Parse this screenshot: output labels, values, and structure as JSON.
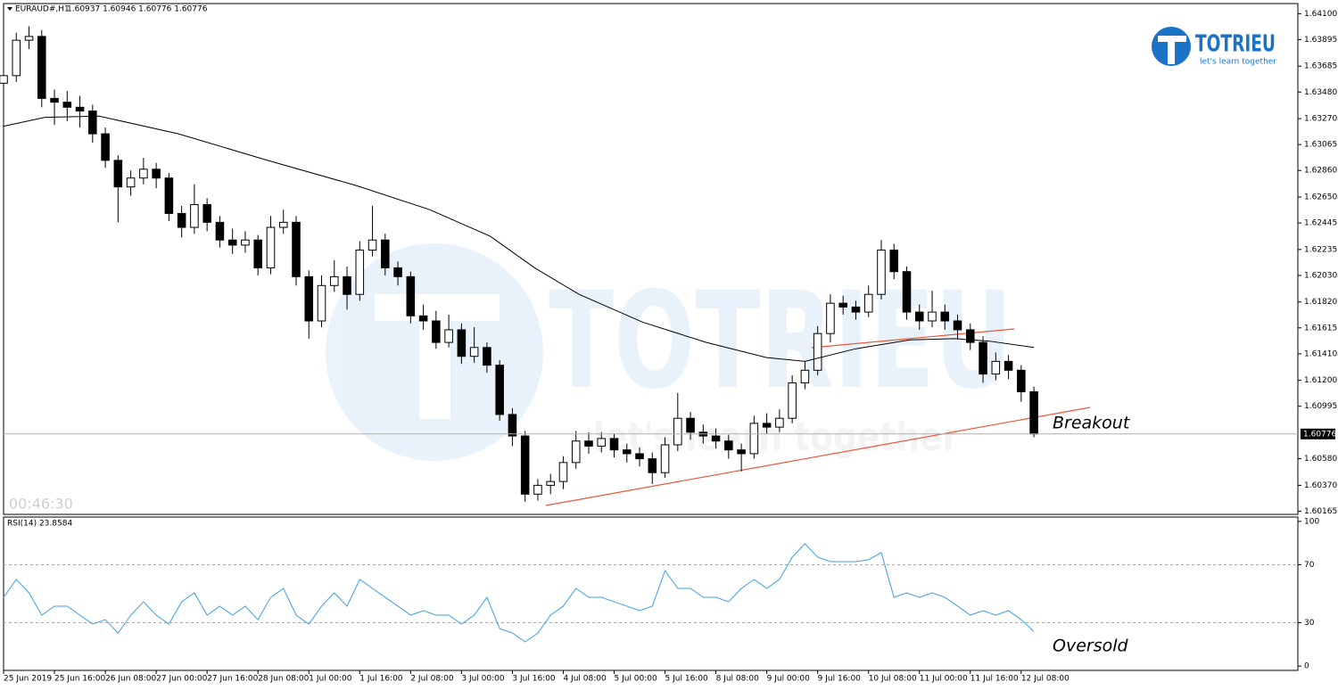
{
  "chart_data": [
    {
      "type": "candlestick",
      "symbol": "EURAUD#,H1",
      "quote": "1.60937 1.60946 1.60776 1.60776",
      "timer": "00:46:30",
      "annotations": [
        "Breakout"
      ],
      "watermark": {
        "brand": "TOTRIEU",
        "slogan": "let's learn together"
      },
      "up_color": "#ffffff",
      "down_color": "#000000",
      "xlim": [
        0,
        407
      ],
      "ylim": [
        1.6014,
        1.6418
      ],
      "yticks": [
        {
          "value": 1.641,
          "label": "1.64100"
        },
        1.63895,
        1.63685,
        {
          "value": 1.6348,
          "label": "1.63480"
        },
        {
          "value": 1.6327,
          "label": "1.63270"
        },
        1.63065,
        {
          "value": 1.6286,
          "label": "1.62860"
        },
        {
          "value": 1.6265,
          "label": "1.62650"
        },
        1.62445,
        1.62235,
        {
          "value": 1.6203,
          "label": "1.62030"
        },
        {
          "value": 1.6182,
          "label": "1.61820"
        },
        1.61615,
        {
          "value": 1.6141,
          "label": "1.61410"
        },
        {
          "value": 1.612,
          "label": "1.61200"
        },
        1.60995,
        {
          "value": 1.6058,
          "label": "1.60580"
        },
        {
          "value": 1.6037,
          "label": "1.60370"
        },
        1.60165
      ],
      "current_price": 1.60776,
      "x": [
        0,
        4,
        8,
        12,
        16,
        20,
        24,
        28,
        32,
        36,
        40,
        44,
        48,
        52,
        56,
        60,
        64,
        68,
        72,
        76,
        80,
        84,
        88,
        92,
        96,
        100,
        104,
        108,
        112,
        116,
        120,
        124,
        128,
        132,
        136,
        140,
        144,
        148,
        152,
        156,
        160,
        164,
        168,
        172,
        176,
        180,
        184,
        188,
        192,
        196,
        200,
        204,
        208,
        212,
        216,
        220,
        224,
        228,
        232,
        236,
        240,
        244,
        248,
        252,
        256,
        260,
        264,
        268,
        272,
        276,
        280,
        284,
        288,
        292,
        296,
        300,
        304,
        308,
        312,
        316,
        320,
        324
      ],
      "open": [
        1.6355,
        1.6361,
        1.6389,
        1.6392,
        1.6343,
        1.634,
        1.6336,
        1.6333,
        1.6315,
        1.6294,
        1.6273,
        1.628,
        1.6287,
        1.628,
        1.6252,
        1.6241,
        1.6259,
        1.6245,
        1.6231,
        1.6227,
        1.6231,
        1.6209,
        1.6241,
        1.6245,
        1.6202,
        1.6167,
        1.6195,
        1.6202,
        1.6188,
        1.6223,
        1.6231,
        1.6209,
        1.6202,
        1.6171,
        1.6167,
        1.615,
        1.616,
        1.6139,
        1.6146,
        1.6132,
        1.6093,
        1.6076,
        1.603,
        1.6037,
        1.604,
        1.6055,
        1.6072,
        1.6068,
        1.6074,
        1.6065,
        1.6062,
        1.6058,
        1.6047,
        1.6069,
        1.609,
        1.6079,
        1.6076,
        1.6072,
        1.6065,
        1.6062,
        1.6086,
        1.6083,
        1.609,
        1.6118,
        1.6128,
        1.6157,
        1.6181,
        1.6178,
        1.6174,
        1.6188,
        1.6223,
        1.6206,
        1.6174,
        1.6167,
        1.6174,
        1.6167,
        1.616,
        1.615,
        1.6125,
        1.6135,
        1.6128,
        1.6111
      ],
      "high": [
        1.6368,
        1.6395,
        1.64,
        1.6397,
        1.635,
        1.6349,
        1.6345,
        1.6338,
        1.632,
        1.6298,
        1.6286,
        1.6296,
        1.6292,
        1.6284,
        1.6258,
        1.6275,
        1.6264,
        1.625,
        1.624,
        1.6238,
        1.6235,
        1.625,
        1.6255,
        1.625,
        1.6207,
        1.6203,
        1.6215,
        1.621,
        1.623,
        1.6258,
        1.6236,
        1.6214,
        1.6206,
        1.618,
        1.6175,
        1.6172,
        1.6165,
        1.6162,
        1.615,
        1.6136,
        1.6098,
        1.608,
        1.6042,
        1.6046,
        1.606,
        1.608,
        1.6079,
        1.6079,
        1.6078,
        1.607,
        1.6067,
        1.6063,
        1.6075,
        1.611,
        1.6095,
        1.6085,
        1.6082,
        1.6077,
        1.607,
        1.6092,
        1.6094,
        1.6097,
        1.6124,
        1.6135,
        1.6163,
        1.6188,
        1.6187,
        1.6183,
        1.6195,
        1.6231,
        1.6228,
        1.621,
        1.618,
        1.6191,
        1.618,
        1.6172,
        1.6165,
        1.6155,
        1.6142,
        1.614,
        1.6132,
        1.6115
      ],
      "low": [
        1.6349,
        1.6356,
        1.6382,
        1.6336,
        1.6322,
        1.6325,
        1.632,
        1.6308,
        1.6288,
        1.6245,
        1.6266,
        1.6275,
        1.6272,
        1.6246,
        1.6233,
        1.6236,
        1.6238,
        1.6225,
        1.622,
        1.6221,
        1.6203,
        1.6204,
        1.6236,
        1.6195,
        1.6153,
        1.6162,
        1.619,
        1.6176,
        1.6183,
        1.6218,
        1.6203,
        1.6195,
        1.6165,
        1.616,
        1.6145,
        1.6146,
        1.6133,
        1.6134,
        1.6126,
        1.6088,
        1.6068,
        1.6024,
        1.6025,
        1.603,
        1.6034,
        1.605,
        1.6062,
        1.6063,
        1.6059,
        1.6055,
        1.6052,
        1.6038,
        1.6043,
        1.6064,
        1.6073,
        1.607,
        1.6066,
        1.6058,
        1.6048,
        1.6058,
        1.6078,
        1.6079,
        1.6086,
        1.6113,
        1.6124,
        1.615,
        1.6172,
        1.6168,
        1.617,
        1.6184,
        1.62,
        1.6168,
        1.616,
        1.6162,
        1.616,
        1.6153,
        1.6144,
        1.6118,
        1.612,
        1.6121,
        1.6103,
        1.6075
      ],
      "close": [
        1.6361,
        1.6389,
        1.6392,
        1.6343,
        1.634,
        1.6336,
        1.6333,
        1.6315,
        1.6294,
        1.6273,
        1.628,
        1.6287,
        1.628,
        1.6252,
        1.6241,
        1.6259,
        1.6245,
        1.6231,
        1.6227,
        1.6231,
        1.6209,
        1.6241,
        1.6245,
        1.6202,
        1.6167,
        1.6195,
        1.6202,
        1.6188,
        1.6223,
        1.6231,
        1.6209,
        1.6202,
        1.6171,
        1.6167,
        1.615,
        1.616,
        1.6139,
        1.6146,
        1.6132,
        1.6093,
        1.6076,
        1.603,
        1.6037,
        1.604,
        1.6055,
        1.6072,
        1.6068,
        1.6074,
        1.6065,
        1.6062,
        1.6058,
        1.6047,
        1.6069,
        1.609,
        1.6079,
        1.6076,
        1.6072,
        1.6065,
        1.6062,
        1.6086,
        1.6083,
        1.609,
        1.6118,
        1.6128,
        1.6157,
        1.6181,
        1.6178,
        1.6174,
        1.6188,
        1.6223,
        1.6206,
        1.6174,
        1.6167,
        1.6174,
        1.6167,
        1.616,
        1.615,
        1.6125,
        1.6135,
        1.6128,
        1.6111,
        1.60776
      ],
      "ma": {
        "color": "#000000",
        "x": [
          0,
          13,
          30,
          55,
          83,
          111,
          134,
          153,
          167,
          181,
          201,
          221,
          240,
          252,
          268,
          285,
          299,
          310,
          324
        ],
        "values": [
          1.6321,
          1.6328,
          1.6329,
          1.6315,
          1.6294,
          1.6274,
          1.6255,
          1.6234,
          1.6209,
          1.6188,
          1.6166,
          1.615,
          1.6138,
          1.6135,
          1.6145,
          1.6152,
          1.6153,
          1.6151,
          1.6146
        ]
      }
    },
    {
      "type": "line",
      "label": "RSI(14) 23.8584",
      "annotations": [
        "Oversold"
      ],
      "color": "#3c9fe6",
      "xlim": [
        0,
        407
      ],
      "ylim": [
        -3,
        103
      ],
      "yticks": [
        100,
        70,
        30,
        0
      ],
      "levels": [
        70,
        30
      ],
      "xticks": [
        {
          "value": 0,
          "label": "25 Jun 2019"
        },
        {
          "value": 16,
          "label": "25 Jun 16:00"
        },
        {
          "value": 32,
          "label": "26 Jun 08:00"
        },
        {
          "value": 48,
          "label": "27 Jun 00:00"
        },
        {
          "value": 64,
          "label": "27 Jun 16:00"
        },
        {
          "value": 80,
          "label": "28 Jun 08:00"
        },
        {
          "value": 96,
          "label": "1 Jul 00:00"
        },
        {
          "value": 112,
          "label": "1 Jul 16:00"
        },
        {
          "value": 128,
          "label": "2 Jul 08:00"
        },
        {
          "value": 144,
          "label": "3 Jul 00:00"
        },
        {
          "value": 160,
          "label": "3 Jul 16:00"
        },
        {
          "value": 176,
          "label": "4 Jul 08:00"
        },
        {
          "value": 192,
          "label": "5 Jul 00:00"
        },
        {
          "value": 208,
          "label": "5 Jul 16:00"
        },
        {
          "value": 224,
          "label": "8 Jul 08:00"
        },
        {
          "value": 240,
          "label": "9 Jul 00:00"
        },
        {
          "value": 256,
          "label": "9 Jul 16:00"
        },
        {
          "value": 272,
          "label": "10 Jul 08:00"
        },
        {
          "value": 288,
          "label": "11 Jul 00:00"
        },
        {
          "value": 304,
          "label": "11 Jul 16:00"
        },
        {
          "value": 320,
          "label": "12 Jul 08:00"
        }
      ],
      "x": [
        0,
        4,
        8,
        12,
        16,
        20,
        24,
        28,
        32,
        36,
        40,
        44,
        48,
        52,
        56,
        60,
        64,
        68,
        72,
        76,
        80,
        84,
        88,
        92,
        96,
        100,
        104,
        108,
        112,
        116,
        120,
        124,
        128,
        132,
        136,
        140,
        144,
        148,
        152,
        156,
        160,
        164,
        168,
        172,
        176,
        180,
        184,
        188,
        192,
        196,
        200,
        204,
        208,
        212,
        216,
        220,
        224,
        228,
        232,
        236,
        240,
        244,
        248,
        252,
        256,
        260,
        264,
        268,
        272,
        276,
        280,
        284,
        288,
        292,
        296,
        300,
        304,
        308,
        312,
        316,
        320,
        324
      ],
      "values": [
        47.5,
        59.9,
        50.6,
        35.2,
        41.4,
        41.4,
        35.2,
        29,
        32.1,
        22.8,
        35.2,
        44.4,
        35.2,
        29,
        44.4,
        50.6,
        35.2,
        41.4,
        35.2,
        41.4,
        32.1,
        47.5,
        53.7,
        35.2,
        29,
        41.4,
        50.6,
        41.4,
        59.9,
        53.7,
        47.5,
        41.4,
        35.2,
        38.3,
        35.2,
        35.2,
        29,
        35.2,
        47.5,
        25.9,
        22.8,
        16.7,
        22.8,
        35.2,
        41.4,
        53.7,
        47.5,
        47.5,
        44.4,
        41.4,
        38.3,
        41.4,
        66,
        53.7,
        53.7,
        47.5,
        47.5,
        44.4,
        53.7,
        59.9,
        53.7,
        59.9,
        75.3,
        84.6,
        75.3,
        72.2,
        72.2,
        72.2,
        73.5,
        78.4,
        47.5,
        50.6,
        47.5,
        50.6,
        47.5,
        41.4,
        35.2,
        38.3,
        35.2,
        38.3,
        32.1,
        23.9
      ]
    }
  ]
}
